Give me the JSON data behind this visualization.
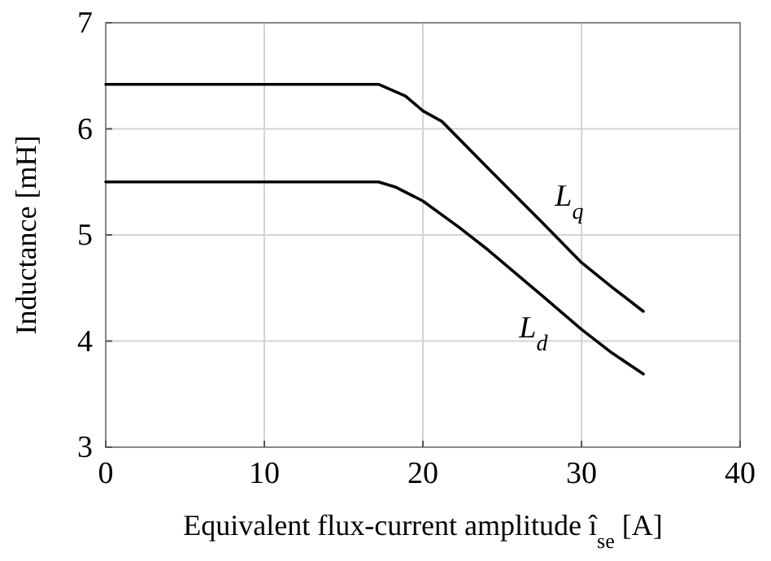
{
  "chart_data": {
    "type": "line",
    "xlabel": "Equivalent flux-current amplitude î$_{se}$ [A]",
    "ylabel": "Inductance [mH]",
    "xlim": [
      0,
      40
    ],
    "xticks": [
      0,
      10,
      20,
      30,
      40
    ],
    "ylim": [
      3,
      7
    ],
    "yticks": [
      3,
      4,
      5,
      6,
      7
    ],
    "grid": true,
    "legend": false,
    "marker": "none",
    "line_style": "solid",
    "series": [
      {
        "name": "L$_{q}$",
        "color": "#000000",
        "x": [
          0,
          17.2,
          18.9,
          20,
          21.2,
          24.1,
          27.5,
          30,
          31.9,
          33.9
        ],
        "values": [
          6.42,
          6.42,
          6.31,
          6.17,
          6.07,
          5.63,
          5.12,
          4.74,
          4.51,
          4.28
        ]
      },
      {
        "name": "L$_{d}$",
        "color": "#000000",
        "x": [
          0,
          17.2,
          18.3,
          20,
          22.3,
          24.1,
          27.5,
          30,
          31.9,
          33.9
        ],
        "values": [
          5.5,
          5.5,
          5.45,
          5.32,
          5.07,
          4.86,
          4.43,
          4.11,
          3.89,
          3.69
        ]
      }
    ]
  }
}
